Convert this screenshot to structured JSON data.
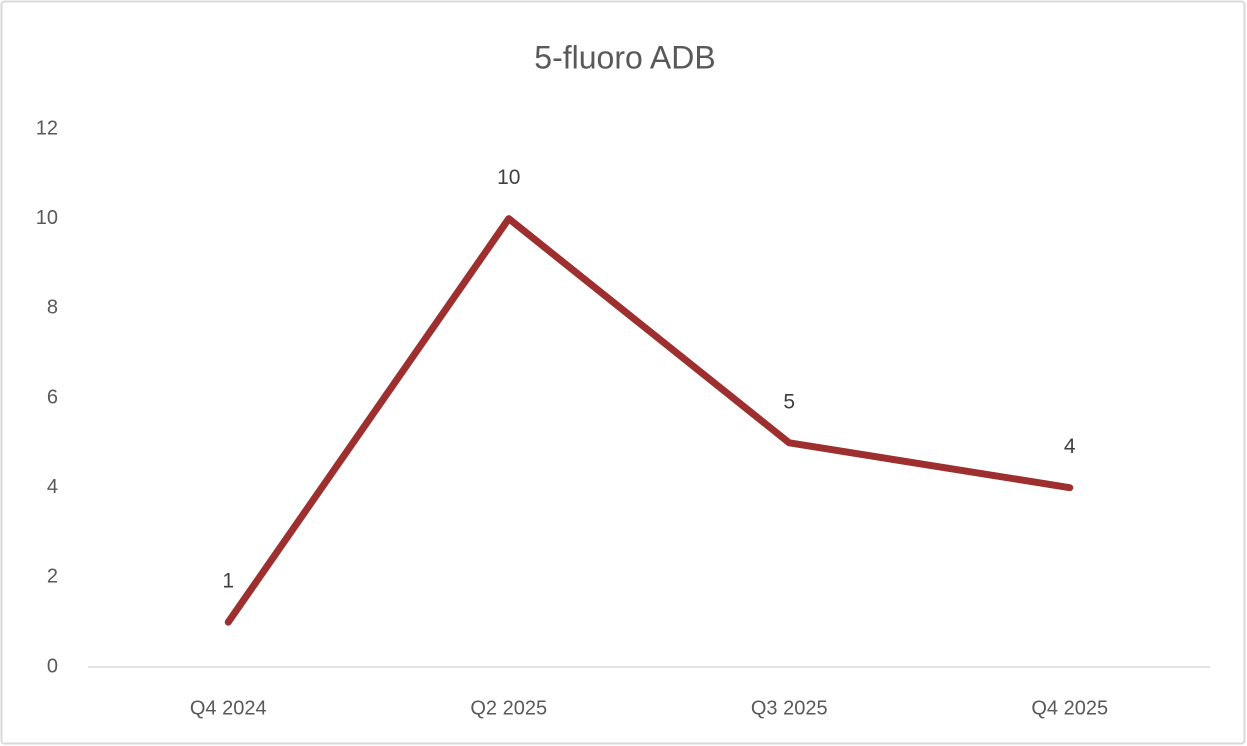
{
  "chart_data": {
    "type": "line",
    "title": "5-fluoro ADB",
    "categories": [
      "Q4 2024",
      "Q2 2025",
      "Q3 2025",
      "Q4 2025"
    ],
    "values": [
      1,
      10,
      5,
      4
    ],
    "color": "#9e2f2f",
    "ylim": [
      0,
      12
    ],
    "yticks": [
      0,
      2,
      4,
      6,
      8,
      10,
      12
    ],
    "grid": false,
    "data_labels": true
  }
}
